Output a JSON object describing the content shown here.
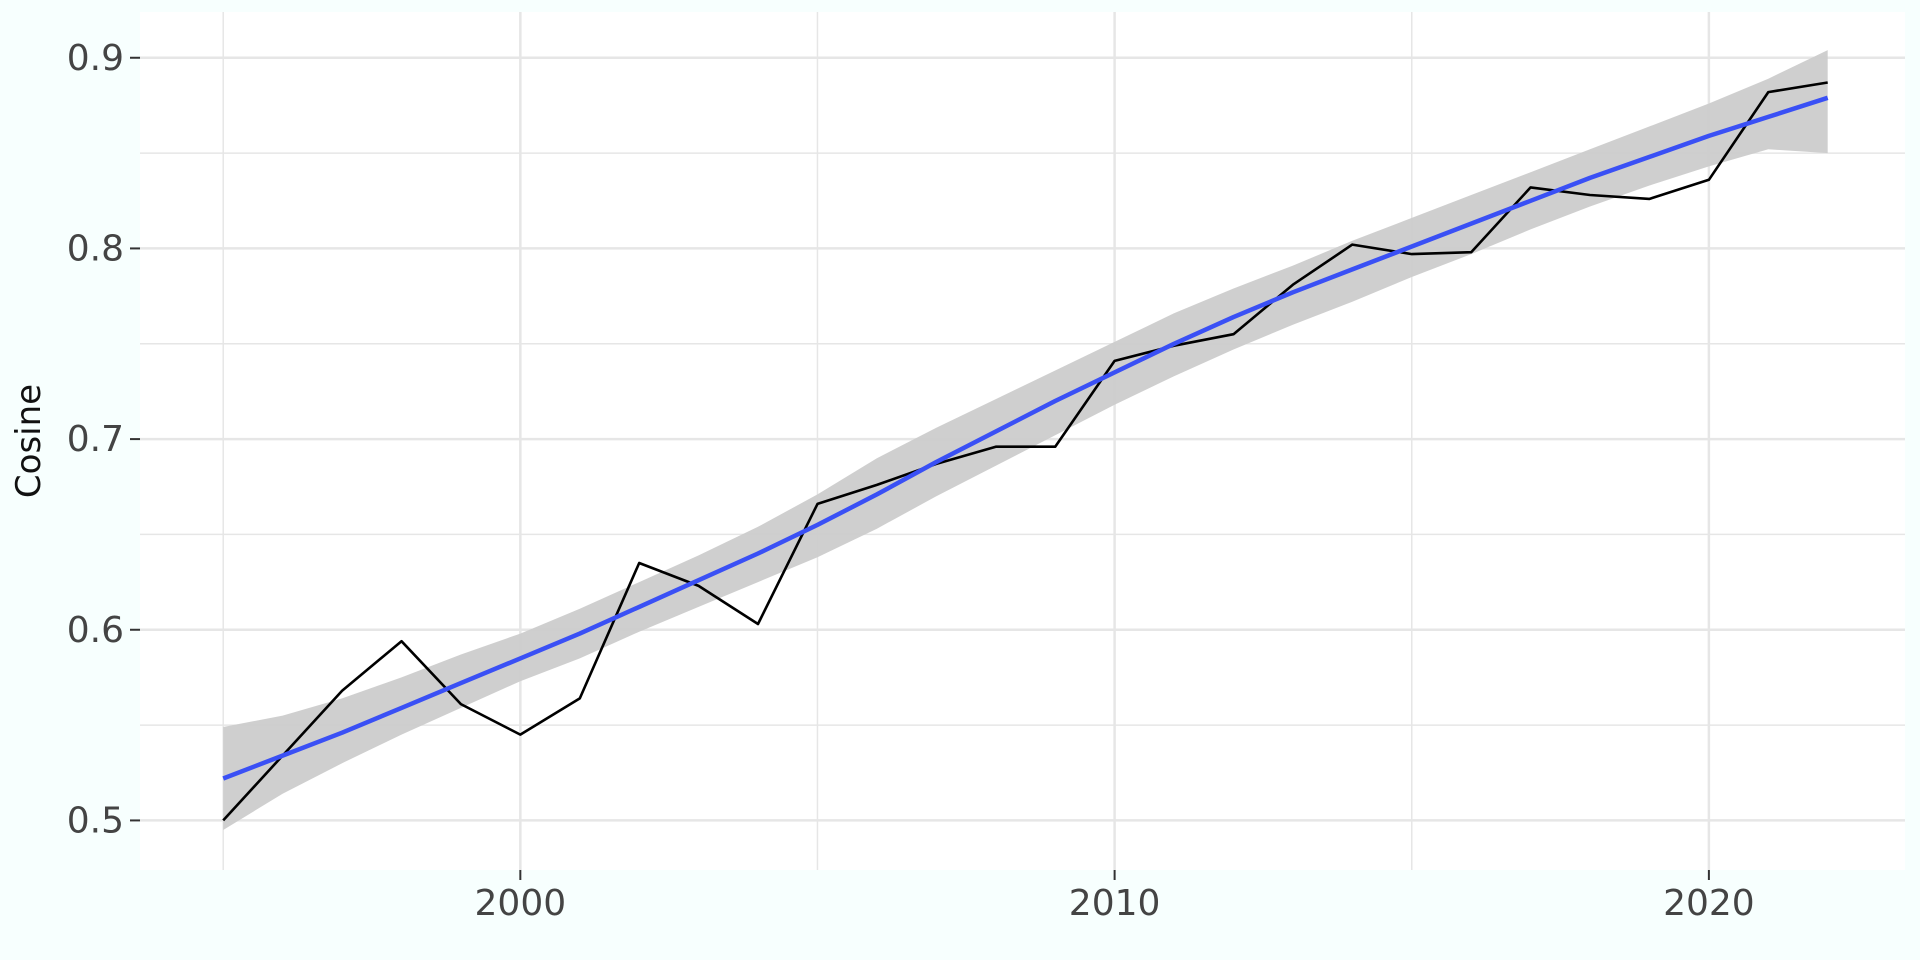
{
  "chart_data": {
    "type": "line",
    "title": "",
    "xlabel": "",
    "ylabel": "Cosine",
    "xlim": [
      1993.6,
      2023.3
    ],
    "ylim": [
      0.474,
      0.924
    ],
    "x_ticks": [
      2000,
      2010,
      2020
    ],
    "x_tick_labels": [
      "2000",
      "2010",
      "2020"
    ],
    "y_ticks": [
      0.5,
      0.6,
      0.7,
      0.8,
      0.9
    ],
    "y_tick_labels": [
      "0.5",
      "0.6",
      "0.7",
      "0.8",
      "0.9"
    ],
    "grid": true,
    "legend": "none",
    "colors": {
      "background": "#f7fffe",
      "panel": "#ffffff",
      "grid": "#e6e6e6",
      "observed_line": "#000000",
      "smooth_line": "#3a50f5",
      "confidence_band": "#cccccc"
    },
    "series": [
      {
        "kind": "observed",
        "x": [
          1995,
          1996,
          1997,
          1998,
          1999,
          2000,
          2001,
          2002,
          2003,
          2004,
          2005,
          2006,
          2007,
          2008,
          2009,
          2010,
          2011,
          2012,
          2013,
          2014,
          2015,
          2016,
          2017,
          2018,
          2019,
          2020,
          2021,
          2022
        ],
        "y": [
          0.5,
          0.534,
          0.568,
          0.594,
          0.561,
          0.545,
          0.564,
          0.635,
          0.623,
          0.603,
          0.666,
          0.676,
          0.687,
          0.696,
          0.696,
          0.741,
          0.749,
          0.755,
          0.781,
          0.802,
          0.797,
          0.798,
          0.832,
          0.828,
          0.826,
          0.836,
          0.882,
          0.887
        ]
      },
      {
        "kind": "smooth",
        "x": [
          1995,
          1996,
          1997,
          1998,
          1999,
          2000,
          2001,
          2002,
          2003,
          2004,
          2005,
          2006,
          2007,
          2008,
          2009,
          2010,
          2011,
          2012,
          2013,
          2014,
          2015,
          2016,
          2017,
          2018,
          2019,
          2020,
          2021,
          2022
        ],
        "y": [
          0.522,
          0.534,
          0.546,
          0.559,
          0.572,
          0.585,
          0.598,
          0.612,
          0.626,
          0.64,
          0.655,
          0.671,
          0.688,
          0.704,
          0.72,
          0.735,
          0.75,
          0.764,
          0.777,
          0.789,
          0.801,
          0.813,
          0.825,
          0.837,
          0.848,
          0.859,
          0.869,
          0.879
        ],
        "lower": [
          0.495,
          0.514,
          0.53,
          0.545,
          0.559,
          0.573,
          0.585,
          0.599,
          0.612,
          0.625,
          0.638,
          0.653,
          0.67,
          0.686,
          0.702,
          0.718,
          0.733,
          0.747,
          0.76,
          0.772,
          0.785,
          0.797,
          0.81,
          0.822,
          0.833,
          0.843,
          0.852,
          0.85
        ],
        "upper": [
          0.549,
          0.555,
          0.564,
          0.575,
          0.587,
          0.598,
          0.611,
          0.625,
          0.639,
          0.654,
          0.671,
          0.69,
          0.706,
          0.721,
          0.736,
          0.751,
          0.766,
          0.779,
          0.791,
          0.804,
          0.816,
          0.828,
          0.84,
          0.852,
          0.864,
          0.876,
          0.889,
          0.904
        ]
      }
    ]
  }
}
